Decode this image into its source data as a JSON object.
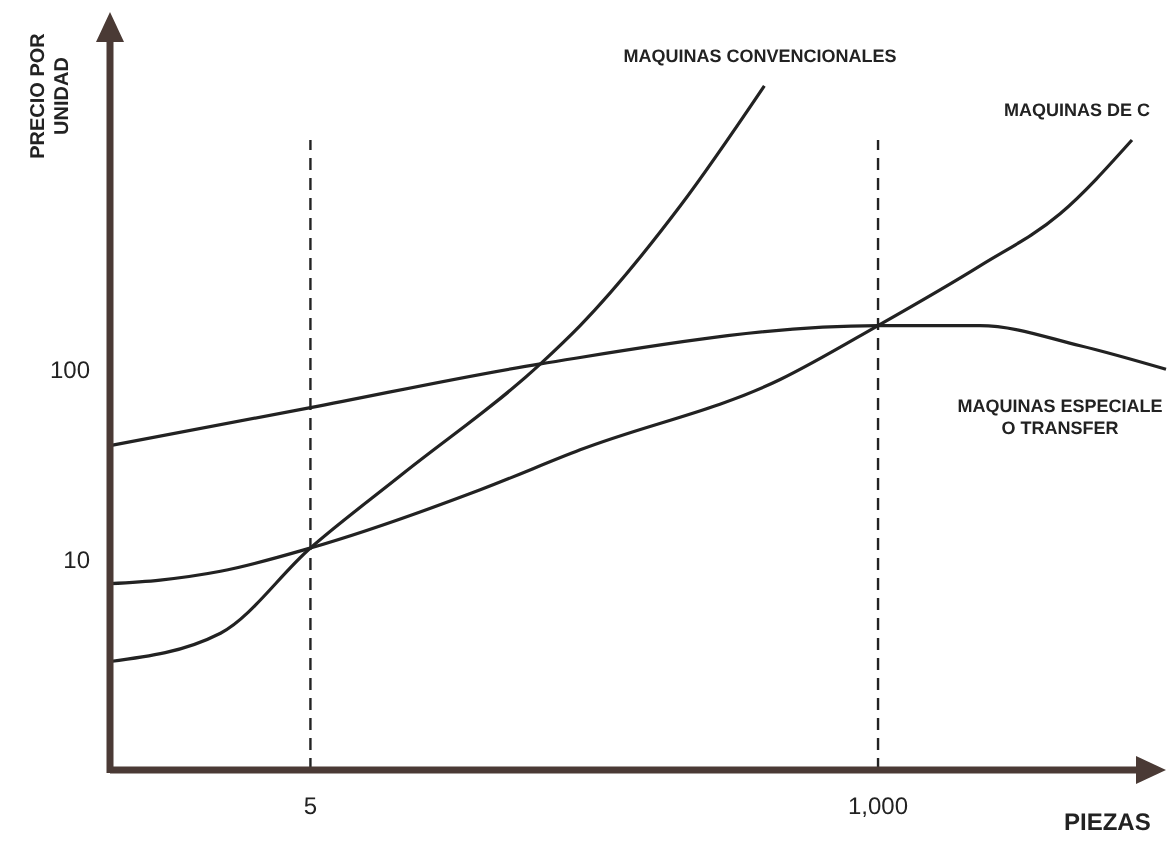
{
  "chart_data": {
    "type": "line",
    "ylabel": "PRECIO POR UNIDAD",
    "xlabel": "PIEZAS",
    "log": "xy",
    "xlim": [
      0.77,
      14700
    ],
    "ylim": [
      0.8,
      6300
    ],
    "xticks": [
      5,
      {
        "value": 1000,
        "label": "1,000"
      }
    ],
    "yticks": [
      10,
      100
    ],
    "legend": false,
    "marker": "none",
    "line_style": "solid",
    "ref_lines": [
      {
        "axis": "x",
        "value": 5,
        "line_style": "dashed"
      },
      {
        "axis": "x",
        "value": 1000,
        "line_style": "dashed"
      }
    ],
    "series": [
      {
        "name": "MAQUINAS CONVENCIONALES",
        "color": "#222222",
        "x": [
          0.77,
          2.16,
          5,
          11.6,
          42.8,
          62,
          158,
          346
        ],
        "values": [
          2.98,
          4.2,
          11.8,
          28.4,
          110,
          175,
          748,
          3200
        ]
      },
      {
        "name": "MAQUINAS DE C",
        "color": "#222222",
        "x": [
          0.77,
          1.23,
          2.16,
          5,
          24.4,
          62,
          401,
          1000,
          2590,
          5470,
          10700
        ],
        "values": [
          7.66,
          8.0,
          8.9,
          11.8,
          23.9,
          38.8,
          91,
          175,
          361,
          679,
          1660
        ]
      },
      {
        "name": "MAQUINAS ESPECIALE O TRANSFER",
        "color": "#222222",
        "x": [
          0.77,
          5,
          42.8,
          1000,
          2590,
          6600,
          14700
        ],
        "values": [
          40.8,
          64.7,
          110,
          175,
          175,
          137,
          103
        ]
      }
    ]
  }
}
